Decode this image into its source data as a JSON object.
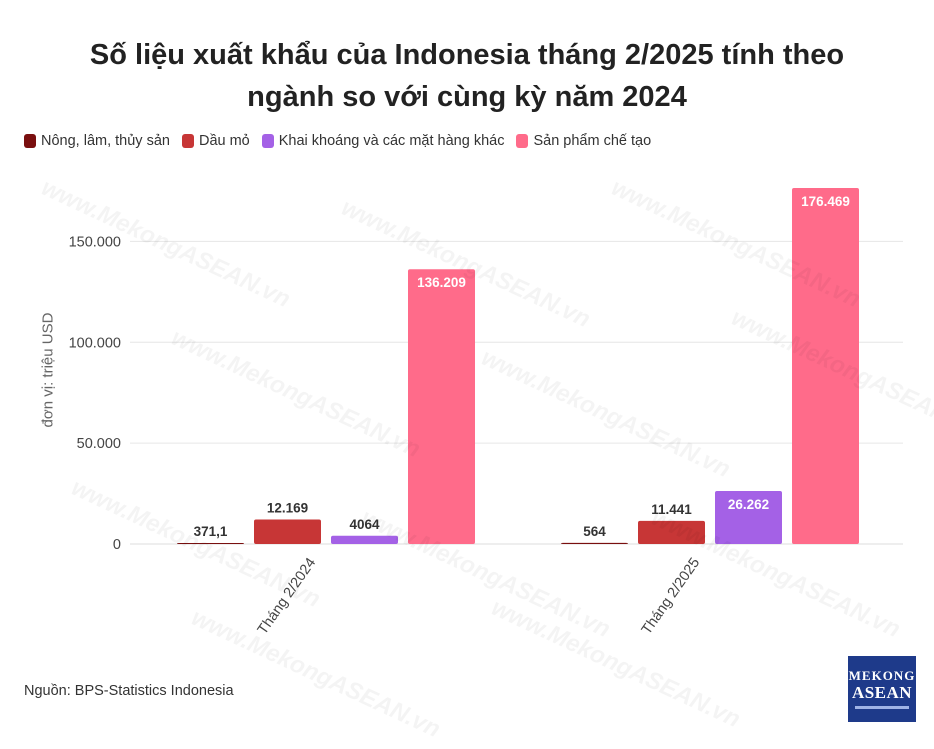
{
  "title_line1": "Số liệu xuất khẩu của Indonesia tháng 2/2025 tính theo",
  "title_line2": "ngành so với cùng kỳ năm 2024",
  "source": "Nguồn: BPS-Statistics Indonesia",
  "logo": {
    "line1": "MEKONG",
    "line2": "ASEAN"
  },
  "watermark": "www.MekongASEAN.vn",
  "chart_data": {
    "type": "bar",
    "ylabel": "đơn vị: triệu USD",
    "ylim": [
      0,
      180000
    ],
    "yticks": [
      0,
      50000,
      100000,
      150000
    ],
    "ytick_labels": [
      "0",
      "50.000",
      "100.000",
      "150.000"
    ],
    "grid": true,
    "legend_position": "top-left",
    "categories": [
      "Tháng 2/2024",
      "Tháng 2/2025"
    ],
    "series": [
      {
        "name": "Nông, lâm, thủy sản",
        "color": "#7a0f0f",
        "values": [
          371.1,
          564
        ],
        "labels": [
          "371,1",
          "564"
        ],
        "label_inside": [
          false,
          false
        ]
      },
      {
        "name": "Dầu mỏ",
        "color": "#c73636",
        "values": [
          12169,
          11441
        ],
        "labels": [
          "12.169",
          "11.441"
        ],
        "label_inside": [
          false,
          false
        ]
      },
      {
        "name": "Khai khoáng và các mặt hàng khác",
        "color": "#a461e6",
        "values": [
          4064,
          26262
        ],
        "labels": [
          "4064",
          "26.262"
        ],
        "label_inside": [
          false,
          true
        ]
      },
      {
        "name": "Sản phẩm chế tạo",
        "color": "#ff6b8a",
        "values": [
          136209,
          176469
        ],
        "labels": [
          "136.209",
          "176.469"
        ],
        "label_inside": [
          true,
          true
        ]
      }
    ]
  }
}
